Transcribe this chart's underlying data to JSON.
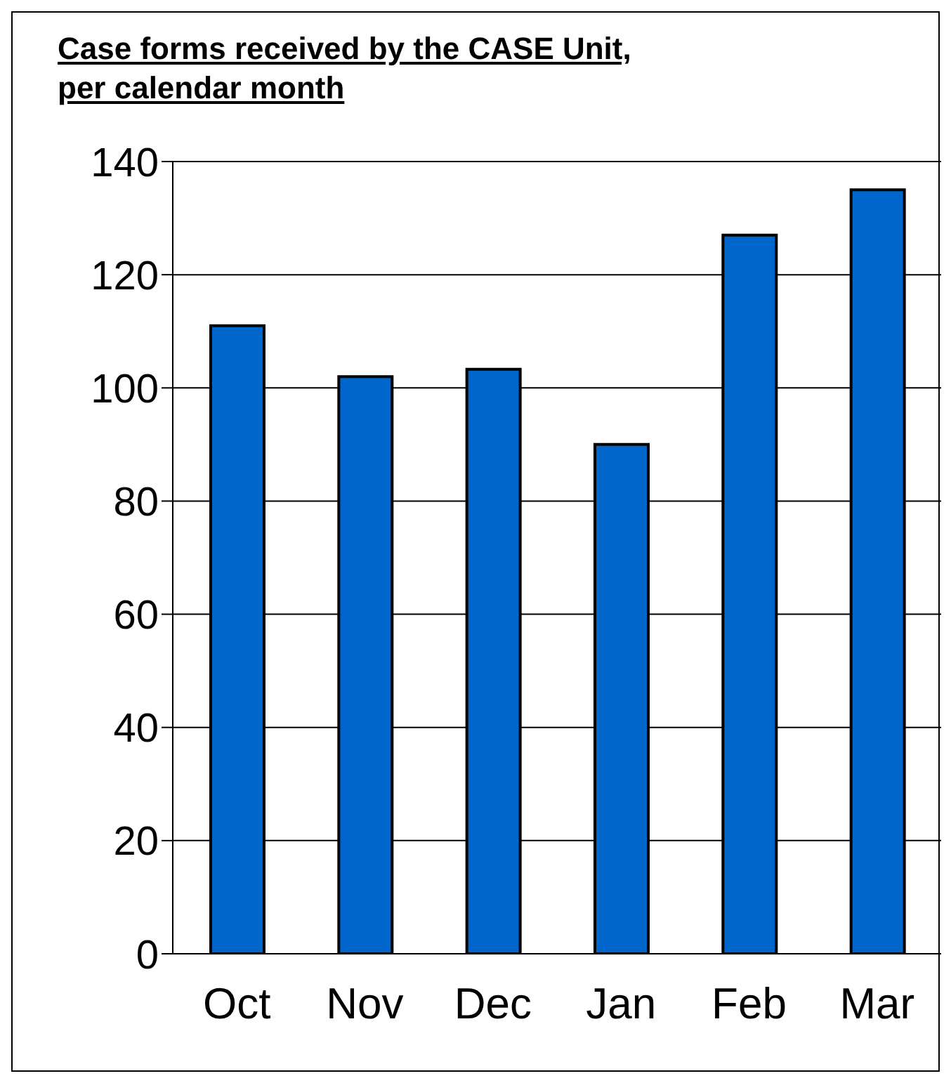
{
  "chart_data": {
    "type": "bar",
    "title": "Case forms received by the CASE Unit,\nper calendar month",
    "categories": [
      "Oct",
      "Nov",
      "Dec",
      "Jan",
      "Feb",
      "Mar"
    ],
    "values": [
      111,
      102,
      103.3,
      90,
      127,
      135
    ],
    "color": "#0066cc",
    "ylim": [
      0,
      140
    ],
    "yticks": [
      0,
      20,
      40,
      60,
      80,
      100,
      120,
      140
    ],
    "grid": "y"
  }
}
